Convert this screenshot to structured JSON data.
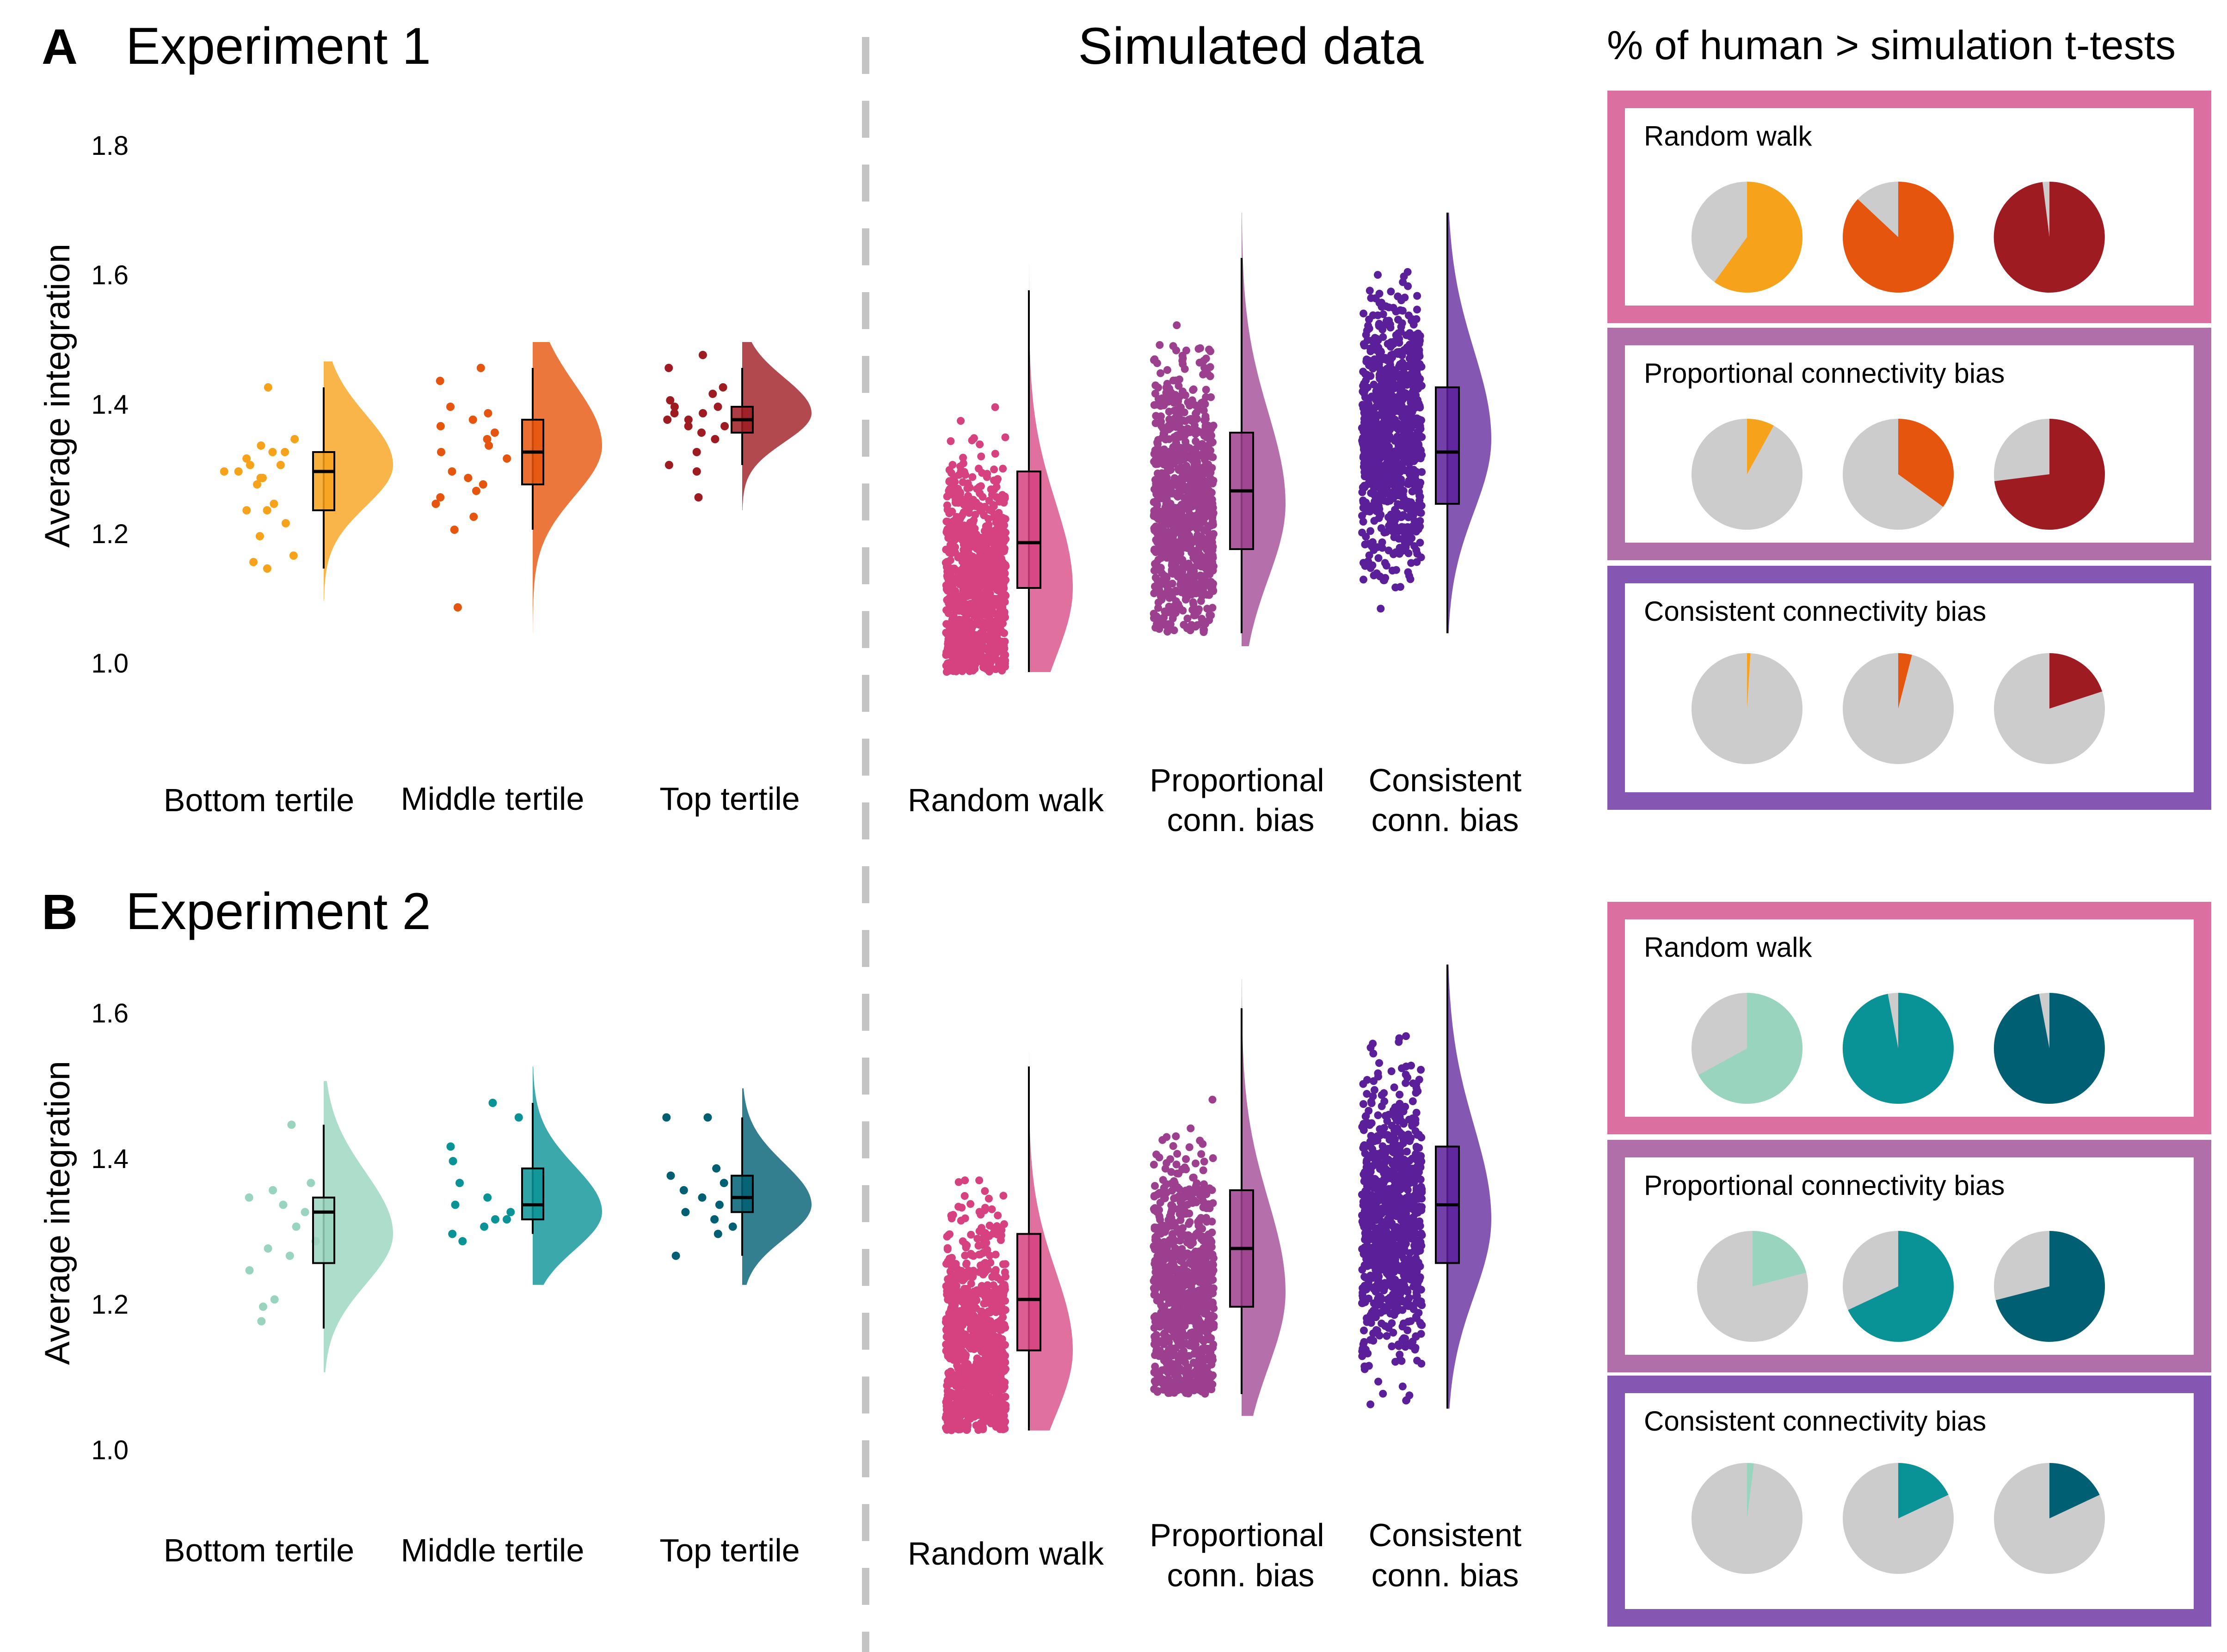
{
  "panels": [
    {
      "letter": "A",
      "title": "Experiment 1",
      "sim_title": "Simulated data",
      "pie_title": "% of human > simulation t-tests",
      "ylabel": "Average integration",
      "yticks": [
        "1.0",
        "1.2",
        "1.4",
        "1.6",
        "1.8"
      ]
    },
    {
      "letter": "B",
      "title": "Experiment 2",
      "ylabel": "Average integration",
      "yticks": [
        "1.0",
        "1.2",
        "1.4",
        "1.6"
      ]
    }
  ],
  "human_labels": [
    "Bottom tertile",
    "Middle tertile",
    "Top tertile"
  ],
  "sim_labels": [
    [
      "Random walk"
    ],
    [
      "Proportional",
      "conn. bias"
    ],
    [
      "Consistent",
      "conn. bias"
    ]
  ],
  "pie_group_titles": [
    "Random walk",
    "Proportional connectivity bias",
    "Consistent connectivity bias"
  ],
  "colors": {
    "exp1_tertiles": [
      "#F7A21B",
      "#E6550D",
      "#9E1B22"
    ],
    "exp2_tertiles": [
      "#99D5BE",
      "#0A9396",
      "#005F73"
    ],
    "simulations": [
      "#D6417F",
      "#9C3F8E",
      "#5B1F9A"
    ],
    "pie_borders": [
      "#DB6FA0",
      "#B06FA9",
      "#8656B3"
    ],
    "pie_rest": "#CCCCCC"
  },
  "chart_data": [
    {
      "type": "raincloud",
      "panel": "A",
      "ylim": [
        0.9,
        1.85
      ],
      "groups": [
        {
          "name": "Bottom tertile",
          "kind": "human",
          "median": 1.3,
          "q1": 1.24,
          "q3": 1.33,
          "whisker": [
            1.15,
            1.43
          ],
          "density": [
            1.1,
            1.47
          ],
          "mode": 1.31,
          "points": [
            1.43,
            1.35,
            1.34,
            1.33,
            1.33,
            1.32,
            1.31,
            1.31,
            1.3,
            1.3,
            1.29,
            1.29,
            1.28,
            1.25,
            1.24,
            1.24,
            1.22,
            1.2,
            1.17,
            1.16,
            1.15
          ]
        },
        {
          "name": "Middle tertile",
          "kind": "human",
          "median": 1.33,
          "q1": 1.28,
          "q3": 1.38,
          "whisker": [
            1.21,
            1.46
          ],
          "density": [
            1.05,
            1.5
          ],
          "mode": 1.34,
          "points": [
            1.46,
            1.44,
            1.4,
            1.39,
            1.38,
            1.37,
            1.36,
            1.35,
            1.34,
            1.33,
            1.32,
            1.3,
            1.29,
            1.28,
            1.27,
            1.26,
            1.25,
            1.23,
            1.21,
            1.09
          ]
        },
        {
          "name": "Top tertile",
          "kind": "human",
          "median": 1.38,
          "q1": 1.36,
          "q3": 1.4,
          "whisker": [
            1.31,
            1.46
          ],
          "density": [
            1.24,
            1.5
          ],
          "mode": 1.39,
          "points": [
            1.48,
            1.46,
            1.43,
            1.42,
            1.41,
            1.4,
            1.4,
            1.39,
            1.39,
            1.38,
            1.38,
            1.37,
            1.37,
            1.36,
            1.35,
            1.33,
            1.31,
            1.3,
            1.26
          ]
        },
        {
          "name": "Random walk",
          "kind": "simulation",
          "median": 1.19,
          "q1": 1.12,
          "q3": 1.3,
          "whisker": [
            0.99,
            1.58
          ],
          "density": [
            0.99,
            1.62
          ],
          "mode": 1.12,
          "range": [
            0.99,
            1.63
          ],
          "n_points": 900
        },
        {
          "name": "Proportional conn. bias",
          "kind": "simulation",
          "median": 1.27,
          "q1": 1.18,
          "q3": 1.36,
          "whisker": [
            1.05,
            1.63
          ],
          "density": [
            1.03,
            1.7
          ],
          "mode": 1.25,
          "range": [
            1.05,
            1.72
          ],
          "n_points": 900
        },
        {
          "name": "Consistent conn. bias",
          "kind": "simulation",
          "median": 1.33,
          "q1": 1.25,
          "q3": 1.43,
          "whisker": [
            1.05,
            1.7
          ],
          "density": [
            1.05,
            1.7
          ],
          "mode": 1.35,
          "range": [
            1.06,
            1.7
          ],
          "n_points": 900
        }
      ]
    },
    {
      "type": "raincloud",
      "panel": "B",
      "ylim": [
        0.95,
        1.75
      ],
      "groups": [
        {
          "name": "Bottom tertile",
          "kind": "human",
          "median": 1.33,
          "q1": 1.26,
          "q3": 1.35,
          "whisker": [
            1.17,
            1.45
          ],
          "density": [
            1.11,
            1.51
          ],
          "mode": 1.3,
          "points": [
            1.45,
            1.37,
            1.36,
            1.35,
            1.34,
            1.33,
            1.31,
            1.29,
            1.28,
            1.27,
            1.25,
            1.21,
            1.2,
            1.18
          ]
        },
        {
          "name": "Middle tertile",
          "kind": "human",
          "median": 1.34,
          "q1": 1.32,
          "q3": 1.39,
          "whisker": [
            1.3,
            1.48
          ],
          "density": [
            1.23,
            1.53
          ],
          "mode": 1.33,
          "points": [
            1.48,
            1.46,
            1.42,
            1.4,
            1.37,
            1.35,
            1.34,
            1.33,
            1.32,
            1.32,
            1.31,
            1.3,
            1.29
          ]
        },
        {
          "name": "Top tertile",
          "kind": "human",
          "median": 1.35,
          "q1": 1.33,
          "q3": 1.38,
          "whisker": [
            1.27,
            1.46
          ],
          "density": [
            1.23,
            1.5
          ],
          "mode": 1.34,
          "points": [
            1.46,
            1.46,
            1.39,
            1.38,
            1.37,
            1.36,
            1.35,
            1.34,
            1.33,
            1.32,
            1.31,
            1.3,
            1.27
          ]
        },
        {
          "name": "Random walk",
          "kind": "simulation",
          "median": 1.21,
          "q1": 1.14,
          "q3": 1.3,
          "whisker": [
            1.03,
            1.53
          ],
          "density": [
            1.03,
            1.55
          ],
          "mode": 1.14,
          "range": [
            1.03,
            1.58
          ],
          "n_points": 900
        },
        {
          "name": "Proportional conn. bias",
          "kind": "simulation",
          "median": 1.28,
          "q1": 1.2,
          "q3": 1.36,
          "whisker": [
            1.08,
            1.61
          ],
          "density": [
            1.05,
            1.65
          ],
          "mode": 1.22,
          "range": [
            1.08,
            1.66
          ],
          "n_points": 900
        },
        {
          "name": "Consistent conn. bias",
          "kind": "simulation",
          "median": 1.34,
          "q1": 1.26,
          "q3": 1.42,
          "whisker": [
            1.06,
            1.67
          ],
          "density": [
            1.06,
            1.67
          ],
          "mode": 1.32,
          "range": [
            1.06,
            1.67
          ],
          "n_points": 900
        }
      ]
    },
    {
      "type": "pie",
      "panel": "A",
      "description": "% of human > simulation t-tests, per tertile (Bottom, Middle, Top)",
      "groups": [
        {
          "title": "Random walk",
          "percent": [
            60,
            87,
            98
          ]
        },
        {
          "title": "Proportional connectivity bias",
          "percent": [
            8,
            35,
            73
          ]
        },
        {
          "title": "Consistent connectivity bias",
          "percent": [
            1,
            4,
            20
          ]
        }
      ]
    },
    {
      "type": "pie",
      "panel": "B",
      "description": "% of human > simulation t-tests, per tertile (Bottom, Middle, Top)",
      "groups": [
        {
          "title": "Random walk",
          "percent": [
            67,
            97,
            97
          ]
        },
        {
          "title": "Proportional connectivity bias",
          "percent": [
            21,
            68,
            71
          ]
        },
        {
          "title": "Consistent connectivity bias",
          "percent": [
            2,
            18,
            18
          ]
        }
      ]
    }
  ]
}
